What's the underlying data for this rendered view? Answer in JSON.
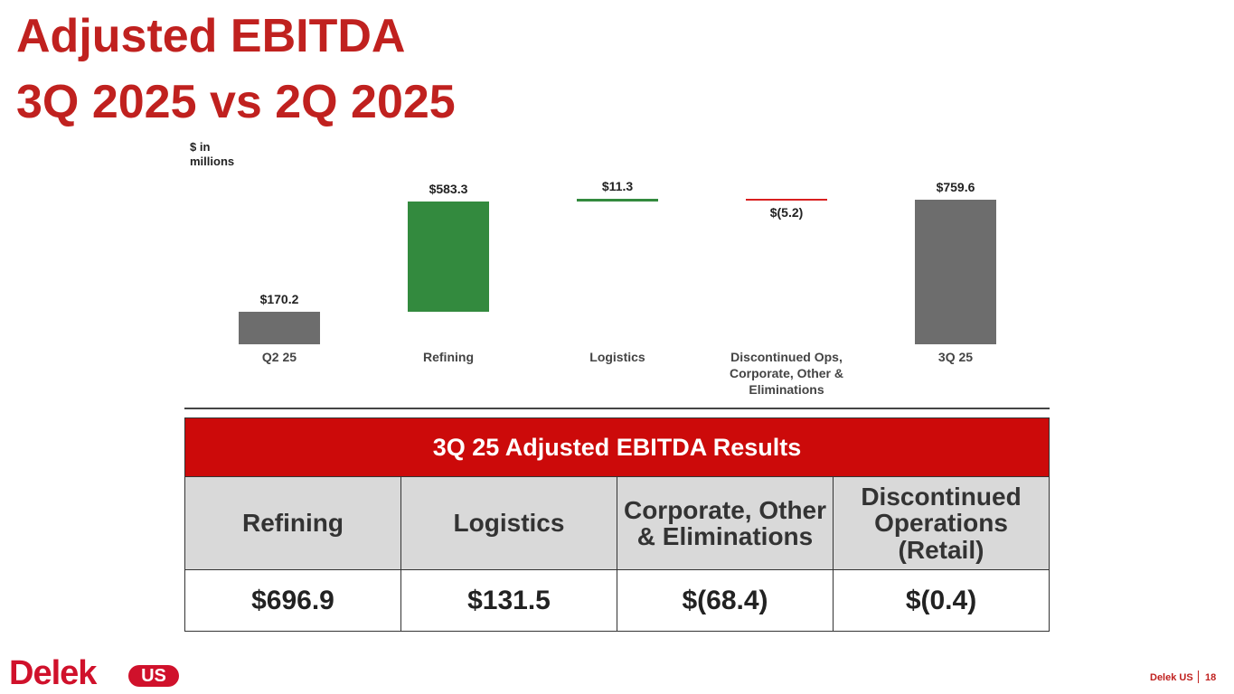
{
  "header": {
    "title_line1": "Adjusted EBITDA",
    "title_line2": "3Q 2025 vs 2Q 2025"
  },
  "chart_data": {
    "type": "waterfall",
    "unit_label": "$ in millions",
    "categories": [
      "Q2 25",
      "Refining",
      "Logistics",
      "Discontinued Ops, Corporate, Other & Eliminations",
      "3Q 25"
    ],
    "values": [
      170.2,
      583.3,
      11.3,
      -5.2,
      759.6
    ],
    "value_labels": [
      "$170.2",
      "$583.3",
      "$11.3",
      "$(5.2)",
      "$759.6"
    ],
    "total_color": "#6d6d6d",
    "increase_color": "#338a3e",
    "decrease_color": "#d92020"
  },
  "table": {
    "title": "3Q 25 Adjusted EBITDA Results",
    "columns": [
      "Refining",
      "Logistics",
      "Corporate, Other & Eliminations",
      "Discontinued Operations (Retail)"
    ],
    "rows": [
      [
        "$696.9",
        "$131.5",
        "$(68.4)",
        "$(0.4)"
      ]
    ]
  },
  "footer": {
    "logo": "Delek",
    "logo_badge": "US",
    "company": "Delek US",
    "page": "18"
  }
}
